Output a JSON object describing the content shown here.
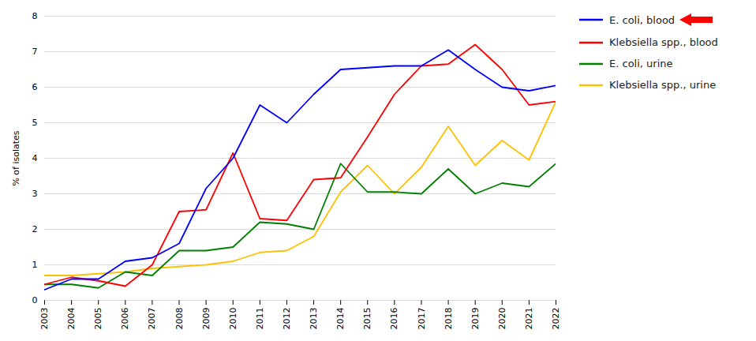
{
  "chart_data": {
    "type": "line",
    "x": [
      2003,
      2004,
      2005,
      2006,
      2007,
      2008,
      2009,
      2010,
      2011,
      2012,
      2013,
      2014,
      2015,
      2016,
      2017,
      2018,
      2019,
      2020,
      2021,
      2022
    ],
    "series": [
      {
        "name": "E. coli, blood",
        "color": "#0000FF",
        "values": [
          0.3,
          0.6,
          0.6,
          1.1,
          1.2,
          1.6,
          3.15,
          4.0,
          5.5,
          5.0,
          5.8,
          6.5,
          6.55,
          6.6,
          6.6,
          7.05,
          6.5,
          6.0,
          5.9,
          6.05
        ]
      },
      {
        "name": "Klebsiella spp., blood",
        "color": "#FF0000",
        "values": [
          0.45,
          0.65,
          0.55,
          0.4,
          1.0,
          2.5,
          2.55,
          4.15,
          2.3,
          2.25,
          3.4,
          3.45,
          4.6,
          5.8,
          6.6,
          6.65,
          7.2,
          6.5,
          5.5,
          5.6
        ]
      },
      {
        "name": "E. coli, urine",
        "color": "#007F00",
        "values": [
          0.45,
          0.45,
          0.35,
          0.8,
          0.7,
          1.4,
          1.4,
          1.5,
          2.2,
          2.15,
          2.0,
          3.85,
          3.05,
          3.05,
          3.0,
          3.7,
          3.0,
          3.3,
          3.2,
          3.85
        ]
      },
      {
        "name": "Klebsiella spp., urine",
        "color": "#FFC000",
        "values": [
          0.7,
          0.7,
          0.75,
          0.8,
          0.9,
          0.95,
          1.0,
          1.1,
          1.35,
          1.4,
          1.8,
          3.05,
          3.8,
          3.0,
          3.75,
          4.9,
          3.8,
          4.5,
          3.95,
          5.6
        ]
      }
    ],
    "ylabel": "% of isolates",
    "xlim": [
      2003,
      2022
    ],
    "xticks": [
      2003,
      2004,
      2005,
      2006,
      2007,
      2008,
      2009,
      2010,
      2011,
      2012,
      2013,
      2014,
      2015,
      2016,
      2017,
      2018,
      2019,
      2020,
      2021,
      2022
    ],
    "ylim": [
      0,
      8
    ],
    "yticks": [
      0,
      1,
      2,
      3,
      4,
      5,
      6,
      7,
      8
    ],
    "grid": true,
    "legend": "right"
  }
}
